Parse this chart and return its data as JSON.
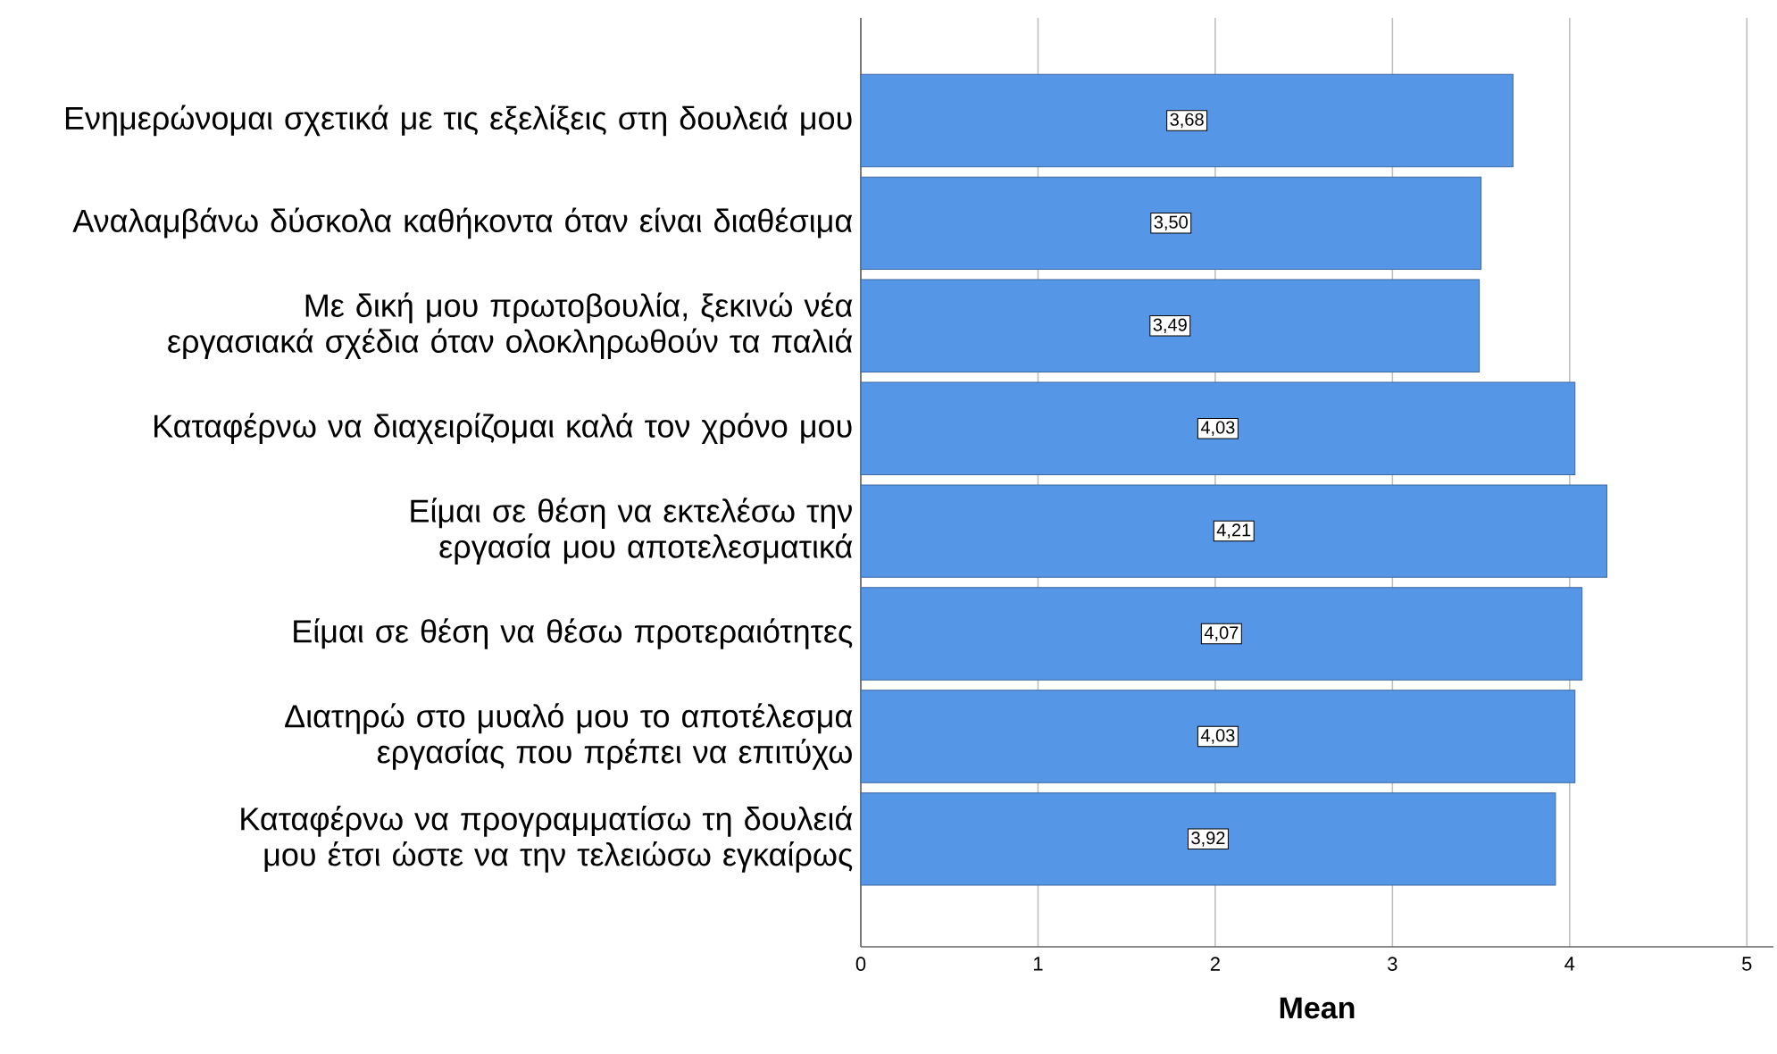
{
  "chart_data": {
    "type": "bar",
    "orientation": "horizontal",
    "xlabel": "Mean",
    "categories": [
      "Ενημερώνομαι σχετικά με τις εξελίξεις στη δουλειά μου",
      "Αναλαμβάνω δύσκολα καθήκοντα όταν είναι διαθέσιμα",
      "Με δική μου πρωτοβουλία, ξεκινώ νέα εργασιακά σχέδια όταν ολοκληρωθούν τα παλιά",
      "Καταφέρνω να διαχειρίζομαι καλά τον χρόνο μου",
      "Είμαι σε θέση να εκτελέσω την εργασία μου αποτελεσματικά",
      "Είμαι σε θέση να θέσω προτεραιότητες",
      "Διατηρώ στο μυαλό μου το αποτέλεσμα εργασίας που πρέπει να επιτύχω",
      "Καταφέρνω να προγραμματίσω τη δουλειά μου έτσι ώστε να την τελειώσω εγκαίρως"
    ],
    "values": [
      3.68,
      3.5,
      3.49,
      4.03,
      4.21,
      4.07,
      4.03,
      3.92
    ],
    "color": "#5596e6",
    "xlim": [
      0,
      5.15
    ],
    "xticks": [
      0,
      1,
      2,
      3,
      4,
      5
    ],
    "grid": "x",
    "value_labels": [
      "3,68",
      "3,50",
      "3,49",
      "4,03",
      "4,21",
      "4,07",
      "4,03",
      "3,92"
    ]
  }
}
